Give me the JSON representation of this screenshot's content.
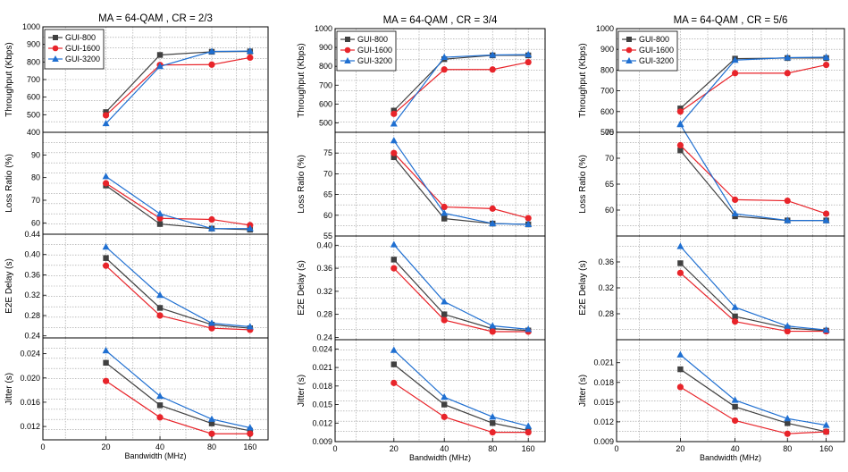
{
  "colors": {
    "GUI-800": "#404040",
    "GUI-1600": "#e8242a",
    "GUI-3200": "#1f6fd1"
  },
  "markers": {
    "GUI-800": "square",
    "GUI-1600": "circle",
    "GUI-3200": "triangle"
  },
  "chart_data": [
    {
      "type": "line",
      "title": "MA = 64-QAM , CR = 2/3",
      "xlabel": "Bandwidth (MHz)",
      "x_ticks": [
        "0",
        "20",
        "40",
        "80",
        "160"
      ],
      "categories": [
        "20",
        "40",
        "80",
        "160"
      ],
      "legend_position": "top-left of first subplot",
      "grid": true,
      "panels": [
        {
          "ylabel": "Throughput (Kbps)",
          "ylim": [
            400,
            1000
          ],
          "y_ticks": [
            "400",
            "500",
            "600",
            "700",
            "800",
            "900",
            "1000"
          ],
          "series": [
            {
              "name": "GUI-800",
              "values": [
                515,
                840,
                858,
                860
              ]
            },
            {
              "name": "GUI-1600",
              "values": [
                497,
                783,
                785,
                825
              ]
            },
            {
              "name": "GUI-3200",
              "values": [
                450,
                775,
                860,
                862
              ]
            }
          ]
        },
        {
          "ylabel": "Loss Ratio (%)",
          "ylim": [
            55,
            100
          ],
          "y_ticks": [
            "60",
            "70",
            "80",
            "90"
          ],
          "series": [
            {
              "name": "GUI-800",
              "values": [
                76.5,
                59.5,
                57.5,
                57.0
              ]
            },
            {
              "name": "GUI-1600",
              "values": [
                77.5,
                62.0,
                61.5,
                59.0
              ]
            },
            {
              "name": "GUI-3200",
              "values": [
                80.5,
                64.0,
                57.5,
                57.5
              ]
            }
          ]
        },
        {
          "ylabel": "E2E Delay (s)",
          "ylim": [
            0.236,
            0.44
          ],
          "y_ticks": [
            "0.24",
            "0.28",
            "0.32",
            "0.36",
            "0.40",
            "0.44"
          ],
          "series": [
            {
              "name": "GUI-800",
              "values": [
                0.393,
                0.295,
                0.262,
                0.255
              ]
            },
            {
              "name": "GUI-1600",
              "values": [
                0.378,
                0.28,
                0.255,
                0.252
              ]
            },
            {
              "name": "GUI-3200",
              "values": [
                0.415,
                0.32,
                0.265,
                0.258
              ]
            }
          ]
        },
        {
          "ylabel": "Jitter (s)",
          "ylim": [
            0.0098,
            0.0266
          ],
          "y_ticks": [
            "0.012",
            "0.016",
            "0.020",
            "0.024"
          ],
          "series": [
            {
              "name": "GUI-800",
              "values": [
                0.0225,
                0.0155,
                0.0125,
                0.0113
              ]
            },
            {
              "name": "GUI-1600",
              "values": [
                0.0195,
                0.0135,
                0.0108,
                0.0108
              ]
            },
            {
              "name": "GUI-3200",
              "values": [
                0.0245,
                0.017,
                0.0132,
                0.0118
              ]
            }
          ]
        }
      ]
    },
    {
      "type": "line",
      "title": "MA = 64-QAM , CR = 3/4",
      "xlabel": "Bandwidth (MHz)",
      "x_ticks": [
        "0",
        "20",
        "40",
        "80",
        "160"
      ],
      "categories": [
        "20",
        "40",
        "80",
        "160"
      ],
      "legend_position": "top-left of first subplot",
      "grid": true,
      "panels": [
        {
          "ylabel": "Throughput (Kbps)",
          "ylim": [
            450,
            1000
          ],
          "y_ticks": [
            "500",
            "600",
            "700",
            "800",
            "900",
            "1000"
          ],
          "series": [
            {
              "name": "GUI-800",
              "values": [
                565,
                838,
                858,
                858
              ]
            },
            {
              "name": "GUI-1600",
              "values": [
                548,
                783,
                783,
                822
              ]
            },
            {
              "name": "GUI-3200",
              "values": [
                495,
                848,
                860,
                862
              ]
            }
          ]
        },
        {
          "ylabel": "Loss Ratio (%)",
          "ylim": [
            55,
            80
          ],
          "y_ticks": [
            "55",
            "60",
            "65",
            "70",
            "75"
          ],
          "series": [
            {
              "name": "GUI-800",
              "values": [
                74.0,
                59.2,
                58.0,
                57.8
              ]
            },
            {
              "name": "GUI-1600",
              "values": [
                75.0,
                62.0,
                61.6,
                59.3
              ]
            },
            {
              "name": "GUI-3200",
              "values": [
                78.0,
                60.5,
                58.0,
                57.8
              ]
            }
          ]
        },
        {
          "ylabel": "E2E Delay (s)",
          "ylim": [
            0.236,
            0.416
          ],
          "y_ticks": [
            "0.24",
            "0.28",
            "0.32",
            "0.36",
            "0.40"
          ],
          "series": [
            {
              "name": "GUI-800",
              "values": [
                0.375,
                0.28,
                0.255,
                0.252
              ]
            },
            {
              "name": "GUI-1600",
              "values": [
                0.36,
                0.27,
                0.25,
                0.25
              ]
            },
            {
              "name": "GUI-3200",
              "values": [
                0.401,
                0.302,
                0.26,
                0.254
              ]
            }
          ]
        },
        {
          "ylabel": "Jitter (s)",
          "ylim": [
            0.009,
            0.0255
          ],
          "y_ticks": [
            "0.009",
            "0.012",
            "0.015",
            "0.018",
            "0.021",
            "0.024"
          ],
          "series": [
            {
              "name": "GUI-800",
              "values": [
                0.0215,
                0.015,
                0.012,
                0.0108
              ]
            },
            {
              "name": "GUI-1600",
              "values": [
                0.0185,
                0.013,
                0.0105,
                0.0105
              ]
            },
            {
              "name": "GUI-3200",
              "values": [
                0.0238,
                0.0162,
                0.013,
                0.0115
              ]
            }
          ]
        }
      ]
    },
    {
      "type": "line",
      "title": "MA = 64-QAM , CR = 5/6",
      "xlabel": "Bandwidth (MHz)",
      "x_ticks": [
        "0",
        "20",
        "40",
        "80",
        "160"
      ],
      "categories": [
        "20",
        "40",
        "80",
        "160"
      ],
      "legend_position": "top-left of first subplot",
      "grid": true,
      "panels": [
        {
          "ylabel": "Throughput (Kbps)",
          "ylim": [
            500,
            1000
          ],
          "y_ticks": [
            "500",
            "600",
            "700",
            "800",
            "900",
            "1000"
          ],
          "series": [
            {
              "name": "GUI-800",
              "values": [
                615,
                855,
                858,
                858
              ]
            },
            {
              "name": "GUI-1600",
              "values": [
                600,
                785,
                785,
                825
              ]
            },
            {
              "name": "GUI-3200",
              "values": [
                540,
                848,
                860,
                862
              ]
            }
          ]
        },
        {
          "ylabel": "Loss Ratio (%)",
          "ylim": [
            55,
            75
          ],
          "y_ticks": [
            "60",
            "65",
            "70",
            "75"
          ],
          "series": [
            {
              "name": "GUI-800",
              "values": [
                71.5,
                58.8,
                58.0,
                58.0
              ]
            },
            {
              "name": "GUI-1600",
              "values": [
                72.5,
                62.0,
                61.8,
                59.3
              ]
            },
            {
              "name": "GUI-3200",
              "values": [
                76.5,
                59.3,
                58.0,
                58.0
              ]
            }
          ]
        },
        {
          "ylabel": "E2E Delay (s)",
          "ylim": [
            0.24,
            0.4
          ],
          "y_ticks": [
            "0.28",
            "0.32",
            "0.36"
          ],
          "series": [
            {
              "name": "GUI-800",
              "values": [
                0.358,
                0.276,
                0.258,
                0.254
              ]
            },
            {
              "name": "GUI-1600",
              "values": [
                0.343,
                0.268,
                0.253,
                0.253
              ]
            },
            {
              "name": "GUI-3200",
              "values": [
                0.384,
                0.29,
                0.261,
                0.255
              ]
            }
          ]
        },
        {
          "ylabel": "Jitter (s)",
          "ylim": [
            0.009,
            0.0245
          ],
          "y_ticks": [
            "0.009",
            "0.012",
            "0.015",
            "0.018",
            "0.021"
          ],
          "series": [
            {
              "name": "GUI-800",
              "values": [
                0.02,
                0.0143,
                0.0118,
                0.0105
              ]
            },
            {
              "name": "GUI-1600",
              "values": [
                0.0173,
                0.0122,
                0.0102,
                0.0105
              ]
            },
            {
              "name": "GUI-3200",
              "values": [
                0.0222,
                0.0153,
                0.0125,
                0.0115
              ]
            }
          ]
        }
      ]
    }
  ]
}
